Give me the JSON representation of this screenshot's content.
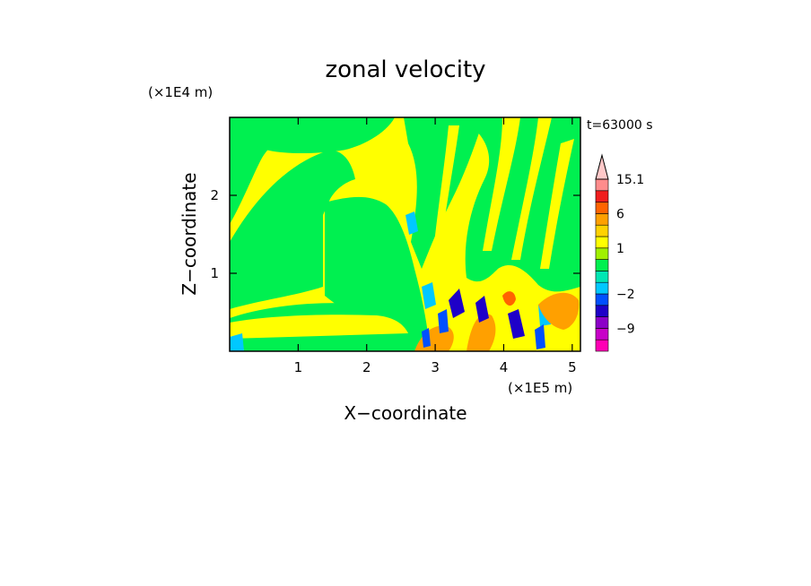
{
  "chart_data": {
    "type": "heatmap",
    "title": "zonal velocity",
    "xlabel": "X−coordinate",
    "ylabel": "Z−coordinate",
    "x_scale_label": "(×1E5 m)",
    "y_scale_label": "(×1E4 m)",
    "time_label": "t=63000 s",
    "xlim": [
      0,
      5.12
    ],
    "ylim": [
      0,
      3.0
    ],
    "x_ticks": [
      1,
      2,
      3,
      4,
      5
    ],
    "y_ticks": [
      1,
      2
    ],
    "colorbar": {
      "labels": [
        "15.1",
        "6",
        "1",
        "−2",
        "−9"
      ],
      "label_values": [
        15.1,
        6,
        1,
        -2,
        -9
      ],
      "levels": [
        {
          "min": -20,
          "max": -12,
          "color": "#ff00b4"
        },
        {
          "min": -12,
          "max": -9,
          "color": "#c800c8"
        },
        {
          "min": -9,
          "max": -6,
          "color": "#8c00c8"
        },
        {
          "min": -6,
          "max": -4,
          "color": "#1e00c8"
        },
        {
          "min": -4,
          "max": -2,
          "color": "#0050ff"
        },
        {
          "min": -2,
          "max": -1,
          "color": "#00c8ff"
        },
        {
          "min": -1,
          "max": 0,
          "color": "#00e6b4"
        },
        {
          "min": 0,
          "max": 0.5,
          "color": "#00f050"
        },
        {
          "min": 0.5,
          "max": 1,
          "color": "#a0f000"
        },
        {
          "min": 1,
          "max": 2,
          "color": "#ffff00"
        },
        {
          "min": 2,
          "max": 4,
          "color": "#ffd200"
        },
        {
          "min": 4,
          "max": 6,
          "color": "#ffa000"
        },
        {
          "min": 6,
          "max": 9,
          "color": "#ff6400"
        },
        {
          "min": 9,
          "max": 12,
          "color": "#f01e1e"
        },
        {
          "min": 12,
          "max": 15.1,
          "color": "#ff8c8c"
        },
        {
          "min": 15.1,
          "max": 18,
          "color": "#ffc8c8"
        }
      ]
    }
  }
}
